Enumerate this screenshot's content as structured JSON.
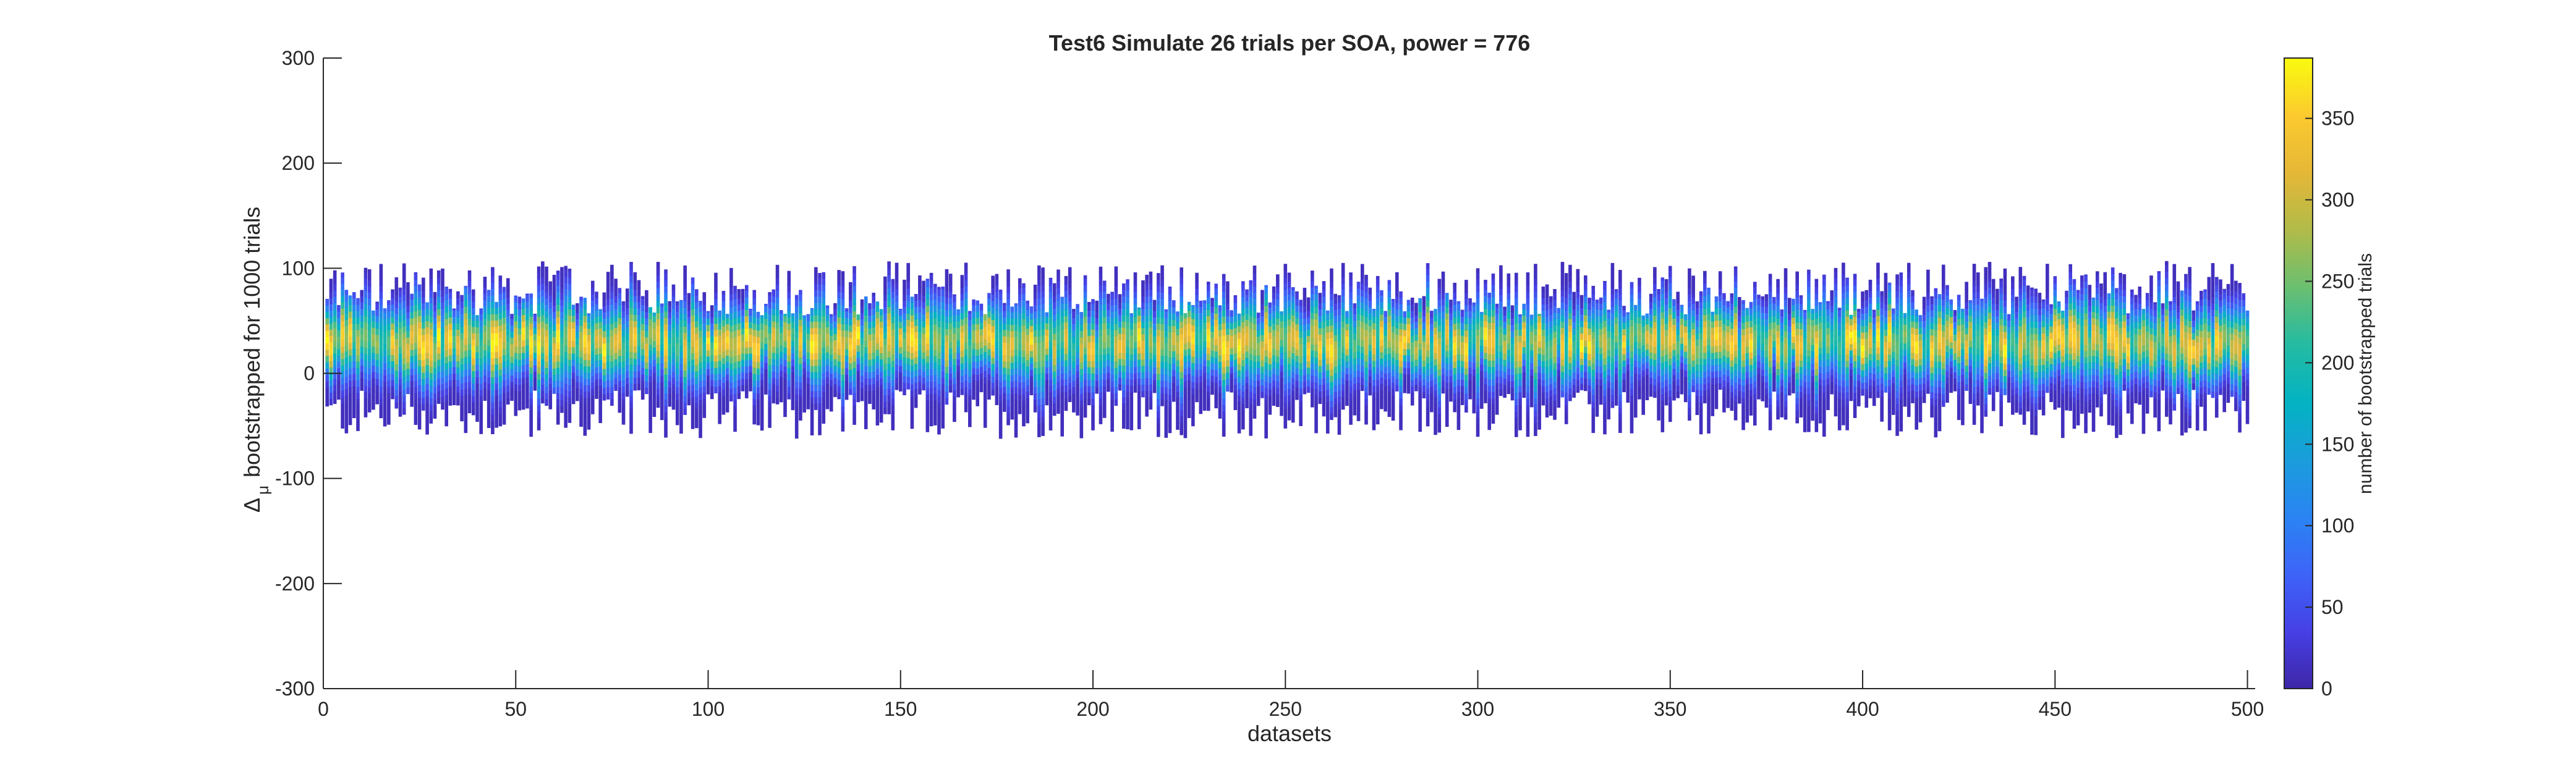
{
  "chart_data": {
    "type": "heatmap",
    "title": "Test6 Simulate 26 trials per SOA, power = 776",
    "xlabel": "datasets",
    "ylabel": "bootstrapped for 1000 trials",
    "ylabel_symbol": "Δ",
    "ylabel_subscript": "μ",
    "xlim": [
      0,
      502
    ],
    "ylim": [
      -300,
      300
    ],
    "xticks": [
      0,
      50,
      100,
      150,
      200,
      250,
      300,
      350,
      400,
      450,
      500
    ],
    "yticks": [
      -300,
      -200,
      -100,
      0,
      100,
      200,
      300
    ],
    "grid": false,
    "colorbar": {
      "label": "number of bootstrapped trials",
      "range": [
        0,
        387
      ],
      "ticks": [
        0,
        50,
        100,
        150,
        200,
        250,
        300,
        350
      ],
      "colormap": "parula",
      "colormap_stops": [
        "#3e26a8",
        "#4640e5",
        "#3d64f8",
        "#2a84f3",
        "#1a9ddb",
        "#03b3c2",
        "#24bba2",
        "#6abf70",
        "#b1bb49",
        "#e5b737",
        "#fcca2f",
        "#f9fb0e"
      ]
    },
    "series": {
      "n_datasets": 500,
      "spread_min_range": [
        -62,
        -15
      ],
      "spread_max_range": [
        55,
        107
      ],
      "center_range": [
        20,
        40
      ],
      "peak_count_range": [
        200,
        387
      ]
    },
    "notable_points": [
      {
        "dataset": 152,
        "min": -15,
        "max": 105
      },
      {
        "dataset": 226,
        "min": -50,
        "max": 65
      },
      {
        "dataset": 300,
        "min": -60,
        "max": 100
      },
      {
        "dataset": 433,
        "min": -20,
        "max": 106
      },
      {
        "dataset": 496,
        "min": -22,
        "max": 104
      }
    ]
  }
}
